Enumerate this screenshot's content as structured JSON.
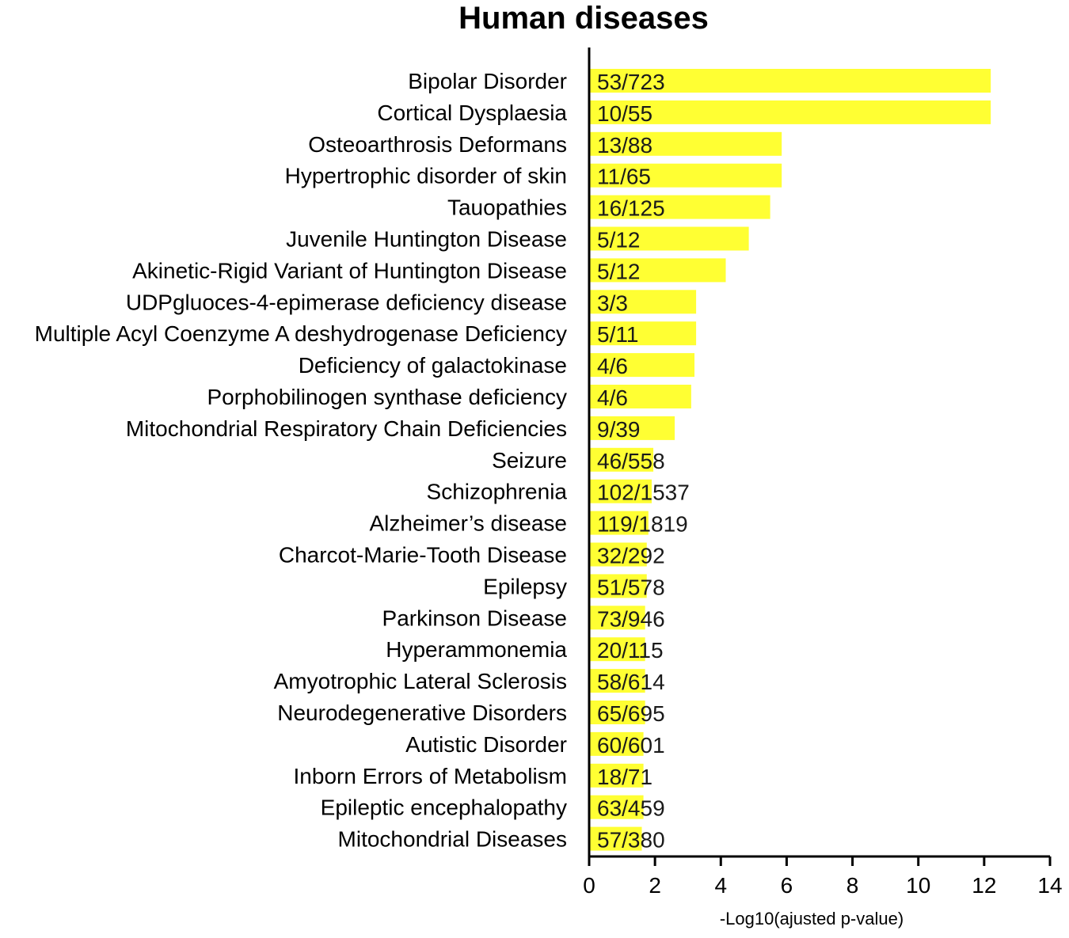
{
  "colors": {
    "bar": "#ffff33",
    "axis": "#000000",
    "text": "#000000"
  },
  "chart_data": {
    "type": "bar",
    "orientation": "horizontal",
    "title": "Human diseases",
    "xlabel": "-Log10(ajusted p-value)",
    "ylabel": "",
    "xlim": [
      0,
      14
    ],
    "xticks": [
      0,
      2,
      4,
      6,
      8,
      10,
      12,
      14
    ],
    "grid": false,
    "legend": "none",
    "categories": [
      "Bipolar Disorder",
      "Cortical Dysplaesia",
      "Osteoarthrosis Deformans",
      "Hypertrophic disorder of skin",
      "Tauopathies",
      "Juvenile Huntington Disease",
      "Akinetic-Rigid Variant of Huntington Disease",
      "UDPgluoces-4-epimerase deficiency disease",
      "Multiple Acyl Coenzyme A deshydrogenase Deficiency",
      "Deficiency of galactokinase",
      "Porphobilinogen synthase deficiency",
      "Mitochondrial Respiratory Chain Deficiencies",
      "Seizure",
      "Schizophrenia",
      "Alzheimer’s disease",
      "Charcot-Marie-Tooth Disease",
      "Epilepsy",
      "Parkinson Disease",
      "Hyperammonemia",
      "Amyotrophic Lateral Sclerosis",
      "Neurodegenerative Disorders",
      "Autistic Disorder",
      "Inborn Errors of Metabolism",
      "Epileptic encephalopathy",
      "Mitochondrial Diseases"
    ],
    "values": [
      12.2,
      12.2,
      5.85,
      5.85,
      5.5,
      4.85,
      4.15,
      3.25,
      3.25,
      3.2,
      3.1,
      2.6,
      1.95,
      1.9,
      1.8,
      1.75,
      1.75,
      1.7,
      1.7,
      1.7,
      1.7,
      1.65,
      1.65,
      1.65,
      1.6
    ],
    "data_labels": [
      "53/723",
      "10/55",
      "13/88",
      "11/65",
      "16/125",
      "5/12",
      "5/12",
      "3/3",
      "5/11",
      "4/6",
      "4/6",
      "9/39",
      "46/558",
      "102/1537",
      "119/1819",
      "32/292",
      "51/578",
      "73/946",
      "20/115",
      "58/614",
      "65/695",
      "60/601",
      "18/71",
      "63/459",
      "57/380"
    ]
  }
}
